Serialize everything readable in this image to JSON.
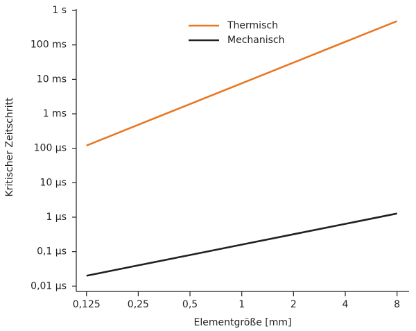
{
  "chart_data": {
    "type": "line",
    "xlabel": "Elementgröße [mm]",
    "ylabel": "Kritischer Zeitschritt",
    "x": [
      0.125,
      0.25,
      0.5,
      1,
      2,
      4,
      8
    ],
    "series": [
      {
        "name": "Thermisch",
        "color": "#e87722",
        "values": [
          0.00012,
          0.00048,
          0.00192,
          0.00768,
          0.0307,
          0.123,
          0.49
        ]
      },
      {
        "name": "Mechanisch",
        "color": "#231f20",
        "values": [
          2e-08,
          4e-08,
          8e-08,
          1.6e-07,
          3.2e-07,
          6.4e-07,
          1.28e-06
        ]
      }
    ],
    "xscale": "log",
    "yscale": "log",
    "xlim": [
      0.109,
      9.4
    ],
    "ylim": [
      7e-09,
      1.1
    ],
    "xticks": [
      {
        "value": 0.125,
        "label": "0,125"
      },
      {
        "value": 0.25,
        "label": "0,25"
      },
      {
        "value": 0.5,
        "label": "0,5"
      },
      1,
      2,
      4,
      8
    ],
    "yticks": [
      {
        "value": 1e-08,
        "label": "0,01 µs"
      },
      {
        "value": 1e-07,
        "label": "0,1 µs"
      },
      {
        "value": 1e-06,
        "label": "1 µs"
      },
      {
        "value": 1e-05,
        "label": "10 µs"
      },
      {
        "value": 0.0001,
        "label": "100 µs"
      },
      {
        "value": 0.001,
        "label": "1 ms"
      },
      {
        "value": 0.01,
        "label": "10 ms"
      },
      {
        "value": 0.1,
        "label": "100 ms"
      },
      {
        "value": 1,
        "label": "1 s"
      }
    ],
    "grid": false,
    "legend": "upper center"
  }
}
